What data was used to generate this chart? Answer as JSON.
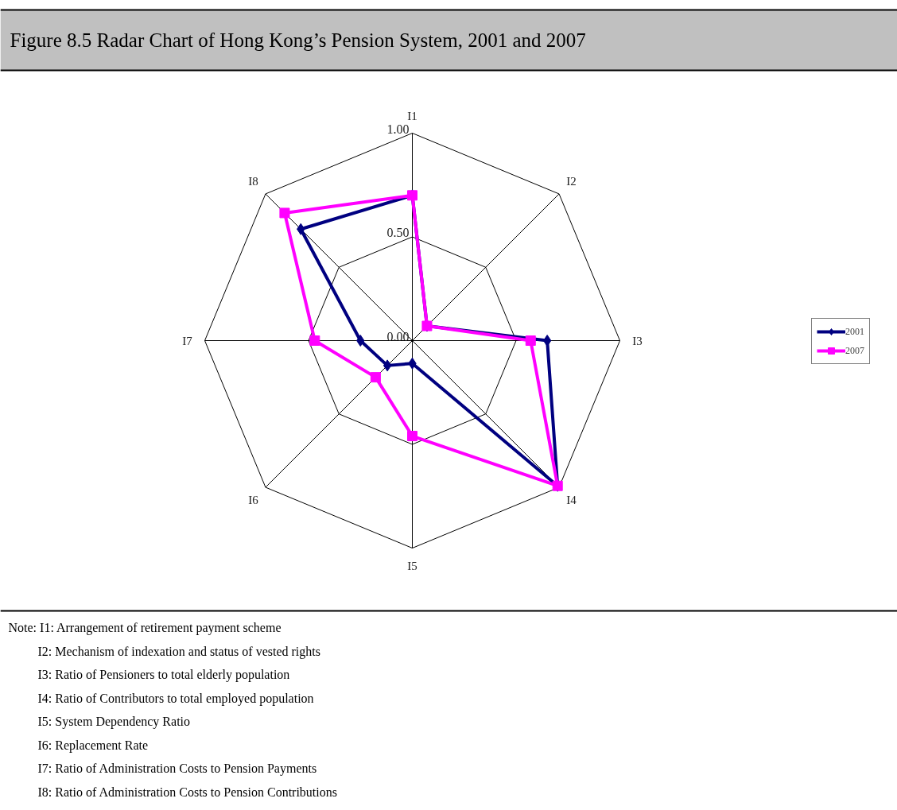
{
  "chart_data": {
    "type": "radar",
    "title": "Figure 8.5 Radar Chart of Hong Kong’s Pension System, 2001 and 2007",
    "categories": [
      "I1",
      "I2",
      "I3",
      "I4",
      "I5",
      "I6",
      "I7",
      "I8"
    ],
    "series": [
      {
        "name": "2001",
        "color": "#000080",
        "marker": "diamond",
        "values": [
          0.7,
          0.1,
          0.65,
          0.99,
          0.11,
          0.17,
          0.25,
          0.76
        ]
      },
      {
        "name": "2007",
        "color": "#ff00ff",
        "marker": "square",
        "values": [
          0.7,
          0.1,
          0.57,
          0.99,
          0.46,
          0.25,
          0.47,
          0.87
        ]
      }
    ],
    "ylim": [
      0,
      1
    ],
    "yticks": [
      {
        "value": 0,
        "label": "0.00"
      },
      {
        "value": 0.5,
        "label": "0.50"
      },
      {
        "value": 1,
        "label": "1.00"
      }
    ],
    "grid": true,
    "legend": "right",
    "line_style": "solid",
    "annotations": [
      "Note:  I1: Arrangement of retirement payment scheme",
      "I2: Mechanism of indexation and status of vested rights",
      "I3: Ratio of Pensioners to total elderly population",
      "I4: Ratio of Contributors to total employed population",
      "I5: System Dependency Ratio",
      "I6: Replacement Rate",
      "I7: Ratio of Administration Costs to Pension Payments",
      "I8: Ratio of Administration Costs to Pension Contributions"
    ]
  }
}
